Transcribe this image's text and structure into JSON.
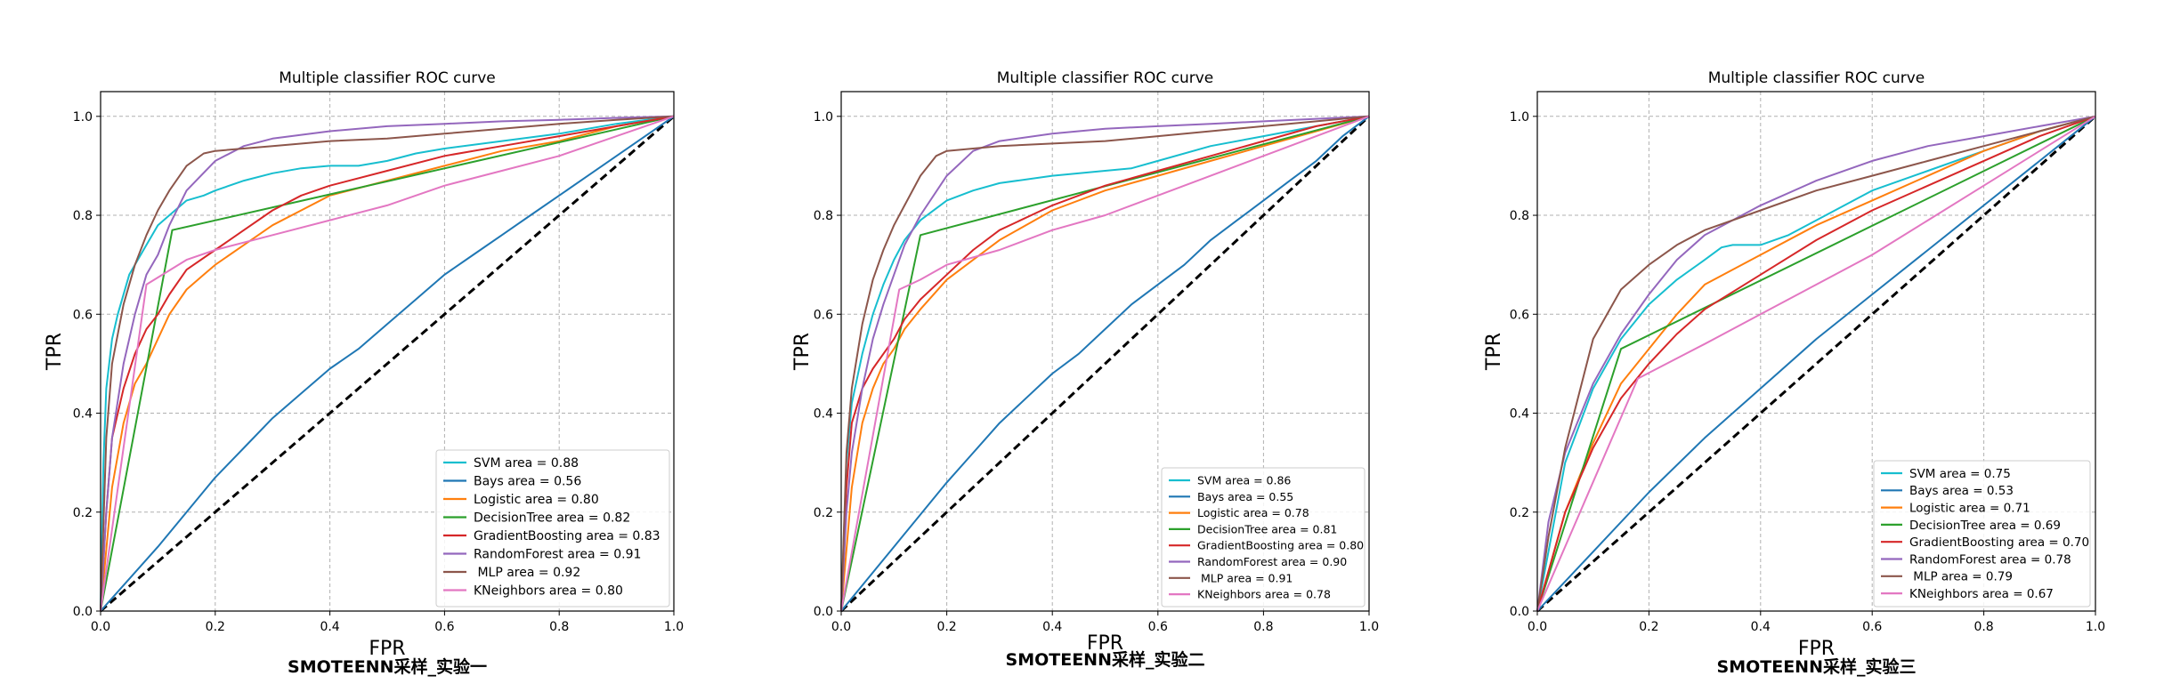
{
  "colors": {
    "SVM": "#17becf",
    "Bays": "#1f77b4",
    "Logistic": "#ff7f0e",
    "DecisionTree": "#2ca02c",
    "GradientBoosting": "#d62728",
    "RandomForest": "#9467bd",
    "MLP": "#8c564b",
    "KNeighbors": "#e377c2",
    "diagonal": "#000000"
  },
  "chart_data": [
    {
      "type": "line",
      "title": "Multiple classifier ROC curve",
      "xlabel": "FPR",
      "ylabel": "TPR",
      "caption": "SMOTEENN采样_实验一",
      "xlim": [
        0,
        1
      ],
      "ylim": [
        0,
        1.05
      ],
      "xticks": [
        "0.0",
        "0.2",
        "0.4",
        "0.6",
        "0.8",
        "1.0"
      ],
      "yticks": [
        "0.0",
        "0.2",
        "0.4",
        "0.6",
        "0.8",
        "1.0"
      ],
      "grid": true,
      "legend_position": "lower-right",
      "diagonal": true,
      "series": [
        {
          "name": "SVM",
          "legend": "SVM area = 0.88",
          "color": "SVM",
          "x": [
            0,
            0.005,
            0.01,
            0.02,
            0.03,
            0.05,
            0.08,
            0.1,
            0.12,
            0.15,
            0.18,
            0.2,
            0.25,
            0.3,
            0.35,
            0.4,
            0.45,
            0.5,
            0.55,
            0.6,
            0.7,
            0.8,
            0.9,
            1.0
          ],
          "y": [
            0,
            0.3,
            0.45,
            0.55,
            0.6,
            0.68,
            0.74,
            0.78,
            0.8,
            0.83,
            0.84,
            0.85,
            0.87,
            0.885,
            0.895,
            0.9,
            0.9,
            0.91,
            0.925,
            0.935,
            0.95,
            0.965,
            0.985,
            1.0
          ]
        },
        {
          "name": "Bays",
          "legend": "Bays area = 0.56",
          "color": "Bays",
          "x": [
            0,
            0.1,
            0.2,
            0.25,
            0.3,
            0.35,
            0.4,
            0.45,
            0.5,
            0.55,
            0.6,
            0.65,
            0.7,
            0.75,
            0.8,
            0.85,
            0.9,
            0.95,
            1.0
          ],
          "y": [
            0,
            0.13,
            0.27,
            0.33,
            0.39,
            0.44,
            0.49,
            0.53,
            0.58,
            0.63,
            0.68,
            0.72,
            0.76,
            0.8,
            0.84,
            0.88,
            0.92,
            0.96,
            1.0
          ]
        },
        {
          "name": "Logistic",
          "legend": "Logistic area = 0.80",
          "color": "Logistic",
          "x": [
            0,
            0.02,
            0.04,
            0.06,
            0.08,
            0.1,
            0.12,
            0.15,
            0.18,
            0.2,
            0.25,
            0.3,
            0.35,
            0.4,
            0.5,
            0.6,
            0.7,
            0.8,
            0.9,
            1.0
          ],
          "y": [
            0,
            0.25,
            0.38,
            0.46,
            0.5,
            0.55,
            0.6,
            0.65,
            0.68,
            0.7,
            0.74,
            0.78,
            0.81,
            0.84,
            0.87,
            0.9,
            0.93,
            0.95,
            0.98,
            1.0
          ]
        },
        {
          "name": "DecisionTree",
          "legend": "DecisionTree area = 0.82",
          "color": "DecisionTree",
          "x": [
            0,
            0.125,
            1.0
          ],
          "y": [
            0,
            0.77,
            1.0
          ]
        },
        {
          "name": "GradientBoosting",
          "legend": "GradientBoosting area = 0.83",
          "color": "GradientBoosting",
          "x": [
            0,
            0.01,
            0.02,
            0.04,
            0.06,
            0.08,
            0.1,
            0.12,
            0.15,
            0.2,
            0.25,
            0.3,
            0.35,
            0.4,
            0.5,
            0.6,
            0.7,
            0.8,
            0.9,
            1.0
          ],
          "y": [
            0,
            0.2,
            0.35,
            0.45,
            0.52,
            0.57,
            0.6,
            0.64,
            0.69,
            0.73,
            0.77,
            0.81,
            0.84,
            0.86,
            0.89,
            0.92,
            0.94,
            0.96,
            0.98,
            1.0
          ]
        },
        {
          "name": "RandomForest",
          "legend": "RandomForest area = 0.91",
          "color": "RandomForest",
          "x": [
            0,
            0.01,
            0.02,
            0.04,
            0.06,
            0.08,
            0.1,
            0.12,
            0.15,
            0.2,
            0.25,
            0.3,
            0.4,
            0.5,
            0.6,
            0.7,
            0.8,
            0.9,
            1.0
          ],
          "y": [
            0,
            0.2,
            0.35,
            0.5,
            0.6,
            0.68,
            0.72,
            0.78,
            0.85,
            0.91,
            0.94,
            0.955,
            0.97,
            0.98,
            0.985,
            0.99,
            0.993,
            0.997,
            1.0
          ]
        },
        {
          "name": "MLP",
          "legend": " MLP area = 0.92",
          "color": "MLP",
          "x": [
            0,
            0.01,
            0.02,
            0.04,
            0.06,
            0.08,
            0.1,
            0.12,
            0.15,
            0.18,
            0.2,
            0.3,
            0.4,
            0.5,
            0.6,
            0.7,
            0.8,
            0.9,
            1.0
          ],
          "y": [
            0,
            0.35,
            0.5,
            0.62,
            0.7,
            0.76,
            0.81,
            0.85,
            0.9,
            0.925,
            0.93,
            0.94,
            0.95,
            0.955,
            0.965,
            0.975,
            0.985,
            0.993,
            1.0
          ]
        },
        {
          "name": "KNeighbors",
          "legend": "KNeighbors area = 0.80",
          "color": "KNeighbors",
          "x": [
            0,
            0.08,
            0.15,
            0.2,
            0.3,
            0.4,
            0.5,
            0.6,
            0.7,
            0.8,
            0.9,
            1.0
          ],
          "y": [
            0,
            0.66,
            0.71,
            0.73,
            0.76,
            0.79,
            0.82,
            0.86,
            0.89,
            0.92,
            0.96,
            1.0
          ]
        }
      ]
    },
    {
      "type": "line",
      "title": "Multiple classifier ROC curve",
      "xlabel": "FPR",
      "ylabel": "TPR",
      "caption": "SMOTEENN采样_实验二",
      "xlim": [
        0,
        1
      ],
      "ylim": [
        0,
        1.05
      ],
      "xticks": [
        "0.0",
        "0.2",
        "0.4",
        "0.6",
        "0.8",
        "1.0"
      ],
      "yticks": [
        "0.0",
        "0.2",
        "0.4",
        "0.6",
        "0.8",
        "1.0"
      ],
      "grid": true,
      "legend_position": "lower-right",
      "diagonal": true,
      "series": [
        {
          "name": "SVM",
          "legend": "SVM area = 0.86",
          "color": "SVM",
          "x": [
            0,
            0.01,
            0.02,
            0.04,
            0.06,
            0.08,
            0.1,
            0.12,
            0.15,
            0.2,
            0.25,
            0.3,
            0.4,
            0.5,
            0.55,
            0.6,
            0.7,
            0.8,
            0.9,
            1.0
          ],
          "y": [
            0,
            0.3,
            0.42,
            0.52,
            0.6,
            0.66,
            0.71,
            0.75,
            0.79,
            0.83,
            0.85,
            0.865,
            0.88,
            0.89,
            0.895,
            0.91,
            0.94,
            0.96,
            0.98,
            1.0
          ]
        },
        {
          "name": "Bays",
          "legend": "Bays area = 0.55",
          "color": "Bays",
          "x": [
            0,
            0.1,
            0.2,
            0.25,
            0.3,
            0.35,
            0.4,
            0.45,
            0.5,
            0.55,
            0.6,
            0.65,
            0.7,
            0.75,
            0.8,
            0.85,
            0.9,
            0.95,
            1.0
          ],
          "y": [
            0,
            0.13,
            0.26,
            0.32,
            0.38,
            0.43,
            0.48,
            0.52,
            0.57,
            0.62,
            0.66,
            0.7,
            0.75,
            0.79,
            0.83,
            0.87,
            0.91,
            0.96,
            1.0
          ]
        },
        {
          "name": "Logistic",
          "legend": "Logistic area = 0.78",
          "color": "Logistic",
          "x": [
            0,
            0.02,
            0.04,
            0.06,
            0.08,
            0.1,
            0.12,
            0.15,
            0.2,
            0.25,
            0.3,
            0.4,
            0.5,
            0.6,
            0.7,
            0.8,
            0.9,
            1.0
          ],
          "y": [
            0,
            0.25,
            0.38,
            0.45,
            0.5,
            0.53,
            0.57,
            0.61,
            0.67,
            0.71,
            0.75,
            0.81,
            0.85,
            0.88,
            0.91,
            0.94,
            0.97,
            1.0
          ]
        },
        {
          "name": "DecisionTree",
          "legend": "DecisionTree area = 0.81",
          "color": "DecisionTree",
          "x": [
            0,
            0.15,
            1.0
          ],
          "y": [
            0,
            0.76,
            1.0
          ]
        },
        {
          "name": "GradientBoosting",
          "legend": "GradientBoosting area = 0.80",
          "color": "GradientBoosting",
          "x": [
            0,
            0.01,
            0.02,
            0.04,
            0.06,
            0.08,
            0.1,
            0.12,
            0.15,
            0.2,
            0.25,
            0.3,
            0.4,
            0.5,
            0.6,
            0.7,
            0.8,
            0.9,
            1.0
          ],
          "y": [
            0,
            0.25,
            0.38,
            0.45,
            0.49,
            0.52,
            0.55,
            0.59,
            0.63,
            0.68,
            0.73,
            0.77,
            0.82,
            0.86,
            0.89,
            0.92,
            0.95,
            0.98,
            1.0
          ]
        },
        {
          "name": "RandomForest",
          "legend": "RandomForest area = 0.90",
          "color": "RandomForest",
          "x": [
            0,
            0.01,
            0.02,
            0.04,
            0.06,
            0.08,
            0.1,
            0.12,
            0.15,
            0.2,
            0.25,
            0.3,
            0.4,
            0.5,
            0.6,
            0.7,
            0.8,
            0.9,
            1.0
          ],
          "y": [
            0,
            0.2,
            0.32,
            0.45,
            0.55,
            0.62,
            0.68,
            0.74,
            0.8,
            0.88,
            0.93,
            0.95,
            0.965,
            0.975,
            0.98,
            0.985,
            0.99,
            0.995,
            1.0
          ]
        },
        {
          "name": "MLP",
          "legend": " MLP area = 0.91",
          "color": "MLP",
          "x": [
            0,
            0.01,
            0.02,
            0.04,
            0.06,
            0.08,
            0.1,
            0.12,
            0.15,
            0.18,
            0.2,
            0.3,
            0.4,
            0.5,
            0.6,
            0.7,
            0.8,
            0.9,
            1.0
          ],
          "y": [
            0,
            0.32,
            0.45,
            0.58,
            0.67,
            0.73,
            0.78,
            0.82,
            0.88,
            0.92,
            0.93,
            0.94,
            0.945,
            0.95,
            0.96,
            0.97,
            0.98,
            0.99,
            1.0
          ]
        },
        {
          "name": "KNeighbors",
          "legend": "KNeighbors area = 0.78",
          "color": "KNeighbors",
          "x": [
            0,
            0.11,
            0.15,
            0.2,
            0.3,
            0.4,
            0.5,
            0.6,
            0.7,
            0.8,
            0.9,
            1.0
          ],
          "y": [
            0,
            0.65,
            0.67,
            0.7,
            0.73,
            0.77,
            0.8,
            0.84,
            0.88,
            0.92,
            0.96,
            1.0
          ]
        }
      ]
    },
    {
      "type": "line",
      "title": "Multiple classifier ROC curve",
      "xlabel": "FPR",
      "ylabel": "TPR",
      "caption": "SMOTEENN采样_实验三",
      "xlim": [
        0,
        1
      ],
      "ylim": [
        0,
        1.05
      ],
      "xticks": [
        "0.0",
        "0.2",
        "0.4",
        "0.6",
        "0.8",
        "1.0"
      ],
      "yticks": [
        "0.0",
        "0.2",
        "0.4",
        "0.6",
        "0.8",
        "1.0"
      ],
      "grid": true,
      "legend_position": "lower-right",
      "diagonal": true,
      "series": [
        {
          "name": "SVM",
          "legend": "SVM area = 0.75",
          "color": "SVM",
          "x": [
            0,
            0.05,
            0.1,
            0.15,
            0.2,
            0.25,
            0.3,
            0.33,
            0.35,
            0.4,
            0.45,
            0.5,
            0.6,
            0.7,
            0.8,
            0.9,
            1.0
          ],
          "y": [
            0,
            0.3,
            0.45,
            0.55,
            0.62,
            0.67,
            0.71,
            0.735,
            0.74,
            0.74,
            0.76,
            0.79,
            0.85,
            0.89,
            0.93,
            0.97,
            1.0
          ]
        },
        {
          "name": "Bays",
          "legend": "Bays area = 0.53",
          "color": "Bays",
          "x": [
            0,
            0.1,
            0.2,
            0.3,
            0.4,
            0.5,
            0.6,
            0.7,
            0.8,
            0.9,
            1.0
          ],
          "y": [
            0,
            0.12,
            0.24,
            0.35,
            0.45,
            0.55,
            0.64,
            0.73,
            0.82,
            0.91,
            1.0
          ]
        },
        {
          "name": "Logistic",
          "legend": "Logistic area = 0.71",
          "color": "Logistic",
          "x": [
            0,
            0.05,
            0.1,
            0.15,
            0.2,
            0.25,
            0.3,
            0.4,
            0.5,
            0.6,
            0.7,
            0.8,
            0.9,
            1.0
          ],
          "y": [
            0,
            0.2,
            0.34,
            0.46,
            0.53,
            0.6,
            0.66,
            0.72,
            0.78,
            0.83,
            0.88,
            0.93,
            0.97,
            1.0
          ]
        },
        {
          "name": "DecisionTree",
          "legend": "DecisionTree area = 0.69",
          "color": "DecisionTree",
          "x": [
            0,
            0.15,
            1.0
          ],
          "y": [
            0,
            0.53,
            1.0
          ]
        },
        {
          "name": "GradientBoosting",
          "legend": "GradientBoosting area = 0.70",
          "color": "GradientBoosting",
          "x": [
            0,
            0.05,
            0.1,
            0.15,
            0.2,
            0.25,
            0.3,
            0.4,
            0.5,
            0.6,
            0.7,
            0.8,
            0.9,
            1.0
          ],
          "y": [
            0,
            0.2,
            0.33,
            0.43,
            0.5,
            0.56,
            0.61,
            0.68,
            0.75,
            0.81,
            0.86,
            0.91,
            0.96,
            1.0
          ]
        },
        {
          "name": "RandomForest",
          "legend": "RandomForest area = 0.78",
          "color": "RandomForest",
          "x": [
            0,
            0.02,
            0.05,
            0.1,
            0.15,
            0.2,
            0.25,
            0.3,
            0.4,
            0.5,
            0.6,
            0.7,
            0.8,
            0.9,
            1.0
          ],
          "y": [
            0,
            0.18,
            0.32,
            0.46,
            0.56,
            0.64,
            0.71,
            0.76,
            0.82,
            0.87,
            0.91,
            0.94,
            0.96,
            0.98,
            1.0
          ]
        },
        {
          "name": "MLP",
          "legend": " MLP area = 0.79",
          "color": "MLP",
          "x": [
            0,
            0.02,
            0.05,
            0.1,
            0.15,
            0.2,
            0.25,
            0.3,
            0.4,
            0.5,
            0.6,
            0.7,
            0.8,
            0.9,
            1.0
          ],
          "y": [
            0,
            0.15,
            0.33,
            0.55,
            0.65,
            0.7,
            0.74,
            0.77,
            0.81,
            0.85,
            0.88,
            0.91,
            0.94,
            0.97,
            1.0
          ]
        },
        {
          "name": "KNeighbors",
          "legend": "KNeighbors area = 0.67",
          "color": "KNeighbors",
          "x": [
            0,
            0.18,
            0.3,
            0.4,
            0.5,
            0.6,
            0.7,
            0.8,
            0.9,
            1.0
          ],
          "y": [
            0,
            0.47,
            0.54,
            0.6,
            0.66,
            0.72,
            0.79,
            0.86,
            0.93,
            1.0
          ]
        }
      ]
    }
  ]
}
